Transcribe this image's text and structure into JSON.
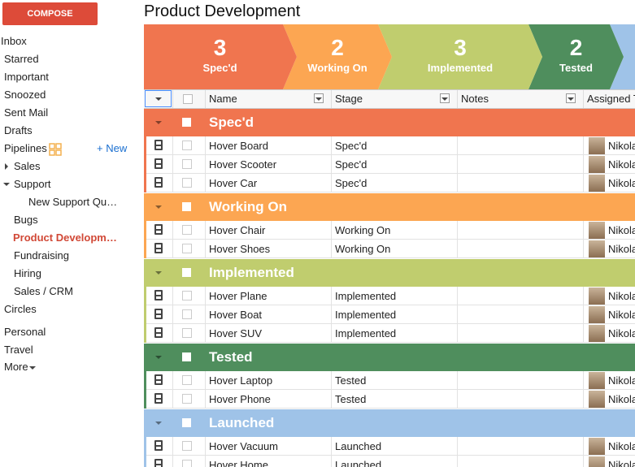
{
  "sidebar": {
    "compose": "COMPOSE",
    "items": [
      "Inbox",
      "Starred",
      "Important",
      "Snoozed",
      "Sent Mail",
      "Drafts"
    ],
    "pipelines": {
      "label": "Pipelines",
      "new": "+ New",
      "items": [
        "Sales",
        "Support",
        "New Support Qu…",
        "Bugs",
        "Product Developm…",
        "Fundraising",
        "Hiring",
        "Sales / CRM"
      ]
    },
    "more_items": [
      "Circles",
      "Personal",
      "Travel",
      "More"
    ]
  },
  "header": {
    "title": "Product Development"
  },
  "stages": [
    {
      "count": 3,
      "label": "Spec'd",
      "color": "#f0754f"
    },
    {
      "count": 2,
      "label": "Working On",
      "color": "#fca652"
    },
    {
      "count": 3,
      "label": "Implemented",
      "color": "#c0cd6e"
    },
    {
      "count": 2,
      "label": "Tested",
      "color": "#4f8e5d"
    },
    {
      "color": "#9fc3e8"
    }
  ],
  "table": {
    "columns": [
      "Name",
      "Stage",
      "Notes",
      "Assigned T"
    ],
    "groups": [
      {
        "name": "Spec'd",
        "color": "#f0754f",
        "rows": [
          {
            "name": "Hover Board",
            "stage": "Spec'd",
            "assigned": "Nikola"
          },
          {
            "name": "Hover Scooter",
            "stage": "Spec'd",
            "assigned": "Nikola"
          },
          {
            "name": "Hover Car",
            "stage": "Spec'd",
            "assigned": "Nikola"
          }
        ]
      },
      {
        "name": "Working On",
        "color": "#fca652",
        "rows": [
          {
            "name": "Hover Chair",
            "stage": "Working On",
            "assigned": "Nikola"
          },
          {
            "name": "Hover Shoes",
            "stage": "Working On",
            "assigned": "Nikola"
          }
        ]
      },
      {
        "name": "Implemented",
        "color": "#c0cd6e",
        "rows": [
          {
            "name": "Hover Plane",
            "stage": "Implemented",
            "assigned": "Nikola"
          },
          {
            "name": "Hover Boat",
            "stage": "Implemented",
            "assigned": "Nikola"
          },
          {
            "name": "Hover SUV",
            "stage": "Implemented",
            "assigned": "Nikola"
          }
        ]
      },
      {
        "name": "Tested",
        "color": "#4f8e5d",
        "rows": [
          {
            "name": "Hover Laptop",
            "stage": "Tested",
            "assigned": "Nikola"
          },
          {
            "name": "Hover Phone",
            "stage": "Tested",
            "assigned": "Nikola"
          }
        ]
      },
      {
        "name": "Launched",
        "color": "#9fc3e8",
        "rows": [
          {
            "name": "Hover Vacuum",
            "stage": "Launched",
            "assigned": "Nikola"
          },
          {
            "name": "Hover Home",
            "stage": "Launched",
            "assigned": "Nikola"
          }
        ]
      }
    ]
  }
}
